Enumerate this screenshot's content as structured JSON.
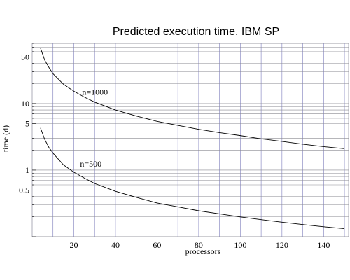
{
  "chart_data": {
    "type": "line",
    "title": "Predicted execution time, IBM SP",
    "xlabel": "processors",
    "ylabel": "time (d)",
    "xlim": [
      0,
      152
    ],
    "ylim": [
      0.1,
      80
    ],
    "y_scale": "log",
    "grid": true,
    "x_ticks": [
      20,
      40,
      60,
      80,
      100,
      120,
      140
    ],
    "y_tick_labels": [
      {
        "value": 0.5,
        "label": "0.5"
      },
      {
        "value": 1,
        "label": "1"
      },
      {
        "value": 5,
        "label": "5"
      },
      {
        "value": 10,
        "label": "10"
      },
      {
        "value": 50,
        "label": "50"
      }
    ],
    "series": [
      {
        "name": "n=1000",
        "x": [
          4,
          6,
          8,
          10,
          15,
          20,
          25,
          30,
          40,
          50,
          60,
          70,
          80,
          90,
          100,
          110,
          120,
          130,
          140,
          150
        ],
        "values": [
          68,
          45,
          35,
          28,
          19.5,
          15.3,
          12.5,
          10.5,
          8.0,
          6.5,
          5.4,
          4.7,
          4.1,
          3.65,
          3.3,
          2.95,
          2.7,
          2.45,
          2.25,
          2.1
        ]
      },
      {
        "name": "n=500",
        "x": [
          4,
          6,
          8,
          10,
          15,
          20,
          25,
          30,
          40,
          50,
          60,
          70,
          80,
          90,
          100,
          110,
          120,
          130,
          140,
          150
        ],
        "values": [
          4.3,
          2.9,
          2.2,
          1.8,
          1.2,
          0.93,
          0.76,
          0.63,
          0.48,
          0.39,
          0.32,
          0.28,
          0.245,
          0.22,
          0.198,
          0.18,
          0.165,
          0.152,
          0.141,
          0.132
        ]
      }
    ],
    "annotations": [
      {
        "text": "n=1000",
        "series": "n=1000"
      },
      {
        "text": "n=500",
        "series": "n=500"
      }
    ]
  }
}
